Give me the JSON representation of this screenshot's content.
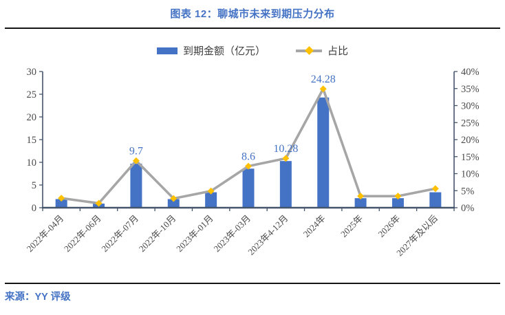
{
  "header": {
    "title": "图表 12：聊城市未来到期压力分布"
  },
  "legend": {
    "bar_label": "到期金额（亿元）",
    "line_label": "占比"
  },
  "footer": {
    "source": "来源：YY 评级"
  },
  "chart_data": {
    "type": "bar",
    "subtype": "combo-bar-line-dual-axis",
    "title": "图表 12：聊城市未来到期压力分布",
    "categories": [
      "2022年-04月",
      "2022年-06月",
      "2022年-07月",
      "2022年-10月",
      "2023年-01月",
      "2023年-03月",
      "2023年4-12月",
      "2024年",
      "2025年",
      "2026年",
      "2027年及以后"
    ],
    "series": [
      {
        "name": "到期金额（亿元）",
        "type": "bar",
        "axis": "left",
        "values": [
          1.9,
          0.9,
          9.7,
          1.9,
          3.4,
          8.6,
          10.28,
          24.28,
          2.1,
          2.1,
          3.4
        ]
      },
      {
        "name": "占比",
        "type": "line",
        "axis": "right",
        "values_pct": [
          2.8,
          1.3,
          13.8,
          2.7,
          4.9,
          12.2,
          14.5,
          34.9,
          3.4,
          3.4,
          5.6
        ]
      }
    ],
    "point_labels": [
      {
        "index": 2,
        "text": "9.7"
      },
      {
        "index": 5,
        "text": "8.6"
      },
      {
        "index": 6,
        "text": "10.28"
      },
      {
        "index": 7,
        "text": "24.28"
      }
    ],
    "left_axis": {
      "min": 0,
      "max": 30,
      "step": 5,
      "ticks": [
        "0",
        "5",
        "10",
        "15",
        "20",
        "25",
        "30"
      ]
    },
    "right_axis": {
      "min": 0,
      "max": 40,
      "step": 5,
      "ticks": [
        "0%",
        "5%",
        "10%",
        "15%",
        "20%",
        "25%",
        "30%",
        "35%",
        "40%"
      ]
    },
    "grid": false,
    "legend_position": "top",
    "colors": {
      "bar": "#4472C4",
      "line": "#A6A6A6",
      "marker": "#FFC000",
      "axis": "#44546A",
      "tick_text": "#4a4a4a",
      "data_label": "#4472C4",
      "title": "#4472C4",
      "divider": "#141414"
    }
  }
}
